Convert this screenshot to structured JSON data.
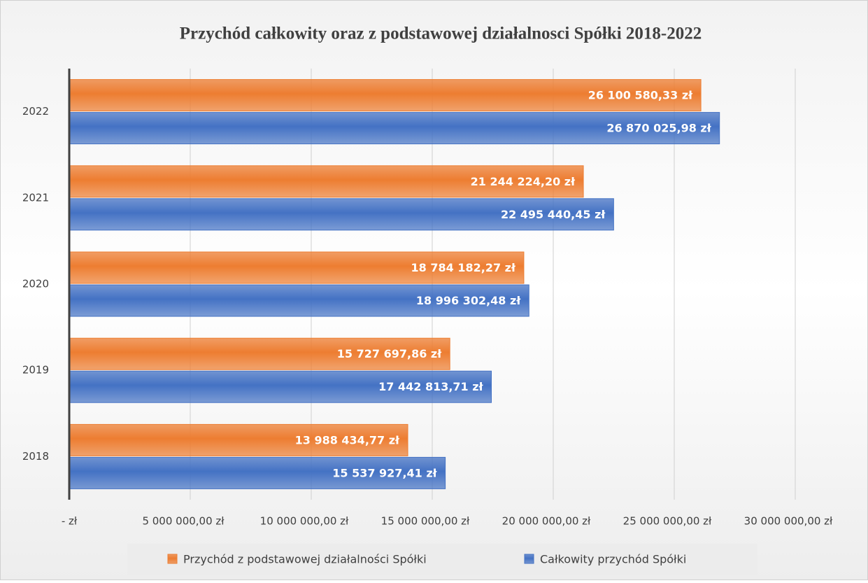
{
  "chart_data": {
    "type": "bar",
    "orientation": "horizontal",
    "title": "Przychód całkowity oraz z podstawowej działalnosci Spółki  2018-2022",
    "categories": [
      "2018",
      "2019",
      "2020",
      "2021",
      "2022"
    ],
    "series": [
      {
        "name": "Przychód z podstawowej działalności Spółki",
        "color": "#ed7d31",
        "values": [
          13988434.77,
          15727697.86,
          18784182.27,
          21244224.2,
          26100580.33
        ],
        "value_labels": [
          "13 988 434,77 zł",
          "15 727 697,86 zł",
          "18 784 182,27 zł",
          "21 244 224,20 zł",
          "26 100 580,33 zł"
        ]
      },
      {
        "name": "Całkowity przychód Spółki",
        "color": "#4472c4",
        "values": [
          15537927.41,
          17442813.71,
          18996302.48,
          22495440.45,
          26870025.98
        ],
        "value_labels": [
          "15 537 927,41 zł",
          "17 442 813,71 zł",
          "18 996 302,48 zł",
          "22 495 440,45 zł",
          "26 870 025,98 zł"
        ]
      }
    ],
    "xlim": [
      0,
      30000000
    ],
    "xticks": [
      {
        "value": 0,
        "label": "-   zł"
      },
      {
        "value": 5000000,
        "label": "5 000 000,00 zł"
      },
      {
        "value": 10000000,
        "label": "10 000 000,00 zł"
      },
      {
        "value": 15000000,
        "label": "15 000 000,00 zł"
      },
      {
        "value": 20000000,
        "label": "20 000 000,00 zł"
      },
      {
        "value": 25000000,
        "label": "25 000 000,00 zł"
      },
      {
        "value": 30000000,
        "label": "30 000 000,00 zł"
      }
    ],
    "grid": true,
    "legend": "bottom"
  }
}
